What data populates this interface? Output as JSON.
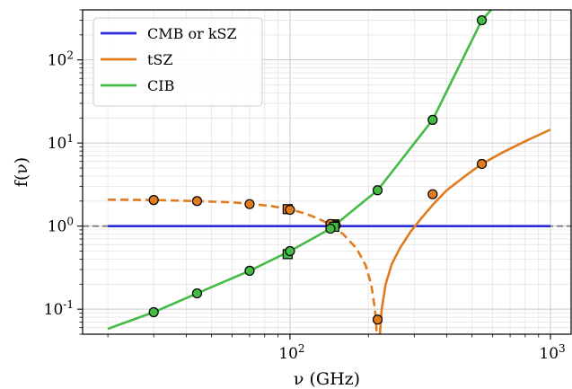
{
  "chart_data": {
    "type": "line",
    "xlabel": "ν (GHz)",
    "ylabel": "f(ν)",
    "x_scale": "log",
    "y_scale": "log",
    "xlim": [
      16,
      1200
    ],
    "ylim": [
      0.05,
      400
    ],
    "grid": true,
    "legend_placement": "top-left",
    "x_ticks": [
      {
        "value": 100,
        "base": "10",
        "exp": "2"
      },
      {
        "value": 1000,
        "base": "10",
        "exp": "3"
      }
    ],
    "y_ticks": [
      {
        "value": 0.1,
        "base": "10",
        "exp": "-1"
      },
      {
        "value": 1,
        "base": "10",
        "exp": "0"
      },
      {
        "value": 10,
        "base": "10",
        "exp": "1"
      },
      {
        "value": 100,
        "base": "10",
        "exp": "2"
      }
    ],
    "reference_line": {
      "y": 1,
      "style": "dashed",
      "color": "#7f7f7f"
    },
    "series": [
      {
        "name": "CMB or kSZ",
        "color": "#2b2bd8",
        "curve": [
          [
            20,
            1
          ],
          [
            1000,
            1
          ]
        ],
        "points": [],
        "square_points": []
      },
      {
        "name": "tSZ",
        "color": "#e07b1f",
        "curve_dashed": [
          [
            20,
            2.08
          ],
          [
            30,
            2.06
          ],
          [
            44,
            2.0
          ],
          [
            60,
            1.93
          ],
          [
            70,
            1.86
          ],
          [
            85,
            1.74
          ],
          [
            100,
            1.59
          ],
          [
            115,
            1.41
          ],
          [
            130,
            1.21
          ],
          [
            143,
            1.04
          ],
          [
            160,
            0.8
          ],
          [
            180,
            0.54
          ],
          [
            195,
            0.34
          ],
          [
            205,
            0.2
          ],
          [
            212,
            0.1
          ],
          [
            215.5,
            0.05
          ]
        ],
        "curve_solid": [
          [
            221.5,
            0.05
          ],
          [
            225,
            0.1
          ],
          [
            233,
            0.2
          ],
          [
            246,
            0.35
          ],
          [
            265,
            0.55
          ],
          [
            290,
            0.85
          ],
          [
            320,
            1.25
          ],
          [
            353,
            1.8
          ],
          [
            400,
            2.7
          ],
          [
            480,
            4.2
          ],
          [
            545,
            5.6
          ],
          [
            650,
            7.6
          ],
          [
            800,
            10.5
          ],
          [
            1000,
            14.5
          ]
        ],
        "points": [
          [
            30,
            2.06
          ],
          [
            44,
            2.0
          ],
          [
            70,
            1.84
          ],
          [
            100,
            1.57
          ],
          [
            143,
            1.06
          ],
          [
            150,
            1.02
          ],
          [
            217,
            0.075
          ],
          [
            353,
            2.42
          ],
          [
            545,
            5.6
          ]
        ],
        "square_points": [
          [
            98,
            1.6
          ],
          [
            148,
            1.05
          ]
        ]
      },
      {
        "name": "CIB",
        "color": "#44bb44",
        "curve": [
          [
            20,
            0.058
          ],
          [
            30,
            0.092
          ],
          [
            44,
            0.155
          ],
          [
            70,
            0.29
          ],
          [
            100,
            0.5
          ],
          [
            143,
            0.93
          ],
          [
            217,
            2.7
          ],
          [
            353,
            19
          ],
          [
            545,
            300
          ],
          [
            600,
            420
          ]
        ],
        "points": [
          [
            30,
            0.092
          ],
          [
            44,
            0.155
          ],
          [
            70,
            0.29
          ],
          [
            100,
            0.5
          ],
          [
            143,
            0.93
          ],
          [
            217,
            2.7
          ],
          [
            353,
            19
          ],
          [
            545,
            300
          ]
        ],
        "square_points": [
          [
            98,
            0.46
          ],
          [
            148,
            0.98
          ]
        ]
      }
    ]
  }
}
